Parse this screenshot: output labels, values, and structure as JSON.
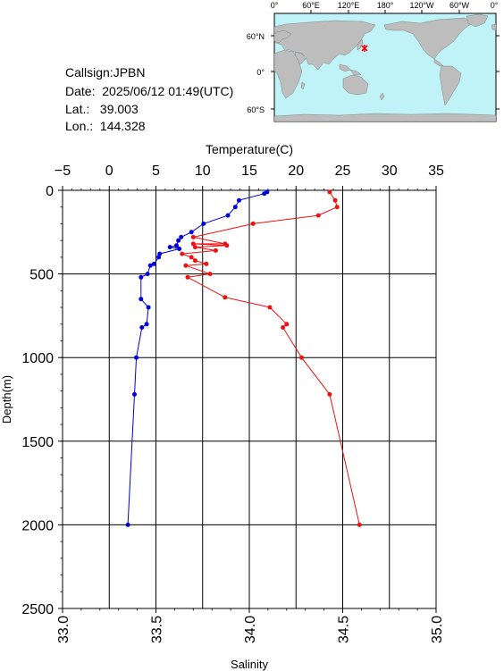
{
  "info": {
    "callsign": "Callsign:JPBN",
    "date": "Date:  2025/06/12 01:49(UTC)",
    "lat": "Lat.:   39.003",
    "lon": "Lon.:  144.328"
  },
  "map": {
    "top_ticks": [
      "0°",
      "60°E",
      "120°E",
      "180°",
      "120°W",
      "60°W",
      "0°"
    ],
    "side_ticks": [
      "60°N",
      "0°",
      "60°S"
    ],
    "ocean_color": "#bff3f8",
    "land_color": "#bdbdbd",
    "marker_color": "#ff0000",
    "marker_position": {
      "lat": 39.003,
      "lon": 144.328
    }
  },
  "chart_data": {
    "type": "line",
    "title": "",
    "grid": true,
    "y_axis": {
      "label": "Depth(m)",
      "range": [
        0,
        2500
      ],
      "inverted": true,
      "ticks": [
        0,
        500,
        1000,
        1500,
        2000,
        2500
      ]
    },
    "temperature_axis": {
      "label": "Temperature(C)",
      "position": "top",
      "range": [
        -5,
        35
      ],
      "ticks": [
        -5,
        0,
        5,
        10,
        15,
        20,
        25,
        30,
        35
      ]
    },
    "salinity_axis": {
      "label": "Salinity",
      "position": "bottom",
      "range": [
        33.0,
        35.0
      ],
      "ticks": [
        "33.0",
        "33.5",
        "34.0",
        "34.5",
        "35.0"
      ]
    },
    "series": [
      {
        "name": "Temperature",
        "axis": "temperature",
        "color": "#0000dd",
        "points": [
          [
            16.9,
            10
          ],
          [
            16.6,
            20
          ],
          [
            13.9,
            60
          ],
          [
            13.5,
            100
          ],
          [
            12.7,
            150
          ],
          [
            10.1,
            200
          ],
          [
            8.8,
            250
          ],
          [
            7.7,
            280
          ],
          [
            7.4,
            300
          ],
          [
            7.2,
            330
          ],
          [
            6.5,
            340
          ],
          [
            7.5,
            350
          ],
          [
            5.4,
            380
          ],
          [
            5.3,
            400
          ],
          [
            4.8,
            440
          ],
          [
            4.4,
            450
          ],
          [
            4.1,
            500
          ],
          [
            3.4,
            520
          ],
          [
            3.4,
            650
          ],
          [
            4.2,
            700
          ],
          [
            4.0,
            800
          ],
          [
            3.5,
            820
          ],
          [
            2.9,
            1000
          ],
          [
            2.7,
            1220
          ],
          [
            2.0,
            2000
          ]
        ]
      },
      {
        "name": "Salinity",
        "axis": "salinity",
        "color": "#ee1111",
        "points": [
          [
            34.43,
            10
          ],
          [
            34.46,
            60
          ],
          [
            34.47,
            100
          ],
          [
            34.37,
            150
          ],
          [
            34.02,
            200
          ],
          [
            33.7,
            280
          ],
          [
            33.87,
            320
          ],
          [
            33.7,
            320
          ],
          [
            33.88,
            330
          ],
          [
            33.71,
            340
          ],
          [
            33.82,
            360
          ],
          [
            33.64,
            380
          ],
          [
            33.69,
            400
          ],
          [
            33.71,
            420
          ],
          [
            33.77,
            440
          ],
          [
            33.66,
            450
          ],
          [
            33.79,
            500
          ],
          [
            33.67,
            520
          ],
          [
            33.87,
            640
          ],
          [
            34.11,
            700
          ],
          [
            34.2,
            800
          ],
          [
            34.18,
            820
          ],
          [
            34.28,
            1000
          ],
          [
            34.43,
            1220
          ],
          [
            34.59,
            2000
          ]
        ]
      }
    ]
  }
}
